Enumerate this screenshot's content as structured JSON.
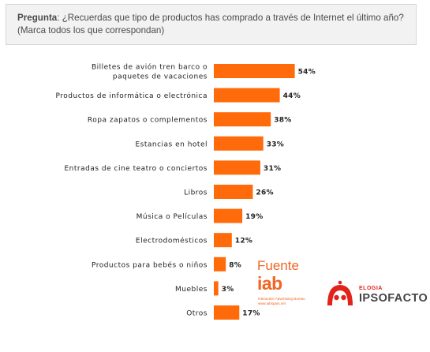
{
  "question": {
    "prefix": "Pregunta",
    "text": ": ¿Recuerdas que tipo de productos has comprado a través de Internet el último año? (Marca todos los que correspondan)"
  },
  "chart_data": {
    "type": "bar",
    "orientation": "horizontal",
    "categories": [
      [
        "Billetes de avión  tren  barco o",
        "paquetes de vacaciones"
      ],
      [
        "Productos de informática o electrónica"
      ],
      [
        "Ropa  zapatos o complementos"
      ],
      [
        "Estancias en hotel"
      ],
      [
        "Entradas de cine  teatro o conciertos"
      ],
      [
        "Libros"
      ],
      [
        "Música o Películas"
      ],
      [
        "Electrodomésticos"
      ],
      [
        "Productos para bebés o niños"
      ],
      [
        "Muebles"
      ],
      [
        "Otros"
      ]
    ],
    "values": [
      54,
      44,
      38,
      33,
      31,
      26,
      19,
      12,
      8,
      3,
      17
    ],
    "value_labels": [
      "54%",
      "44%",
      "38%",
      "33%",
      "31%",
      "26%",
      "19%",
      "12%",
      "8%",
      "3%",
      "17%"
    ],
    "xlim": [
      0,
      100
    ],
    "grid": false,
    "legend": "none",
    "bar_color": "#ff6a0b"
  },
  "logos": {
    "iab": {
      "fuente": "Fuente",
      "word": "iab",
      "sub1": "Interactive Advertising Bureau",
      "sub2": "www.iabspain.net"
    },
    "elogia": {
      "small": "ELOGIA",
      "big": "IPSOFACTO",
      "icon": "elogia-face-icon"
    }
  }
}
